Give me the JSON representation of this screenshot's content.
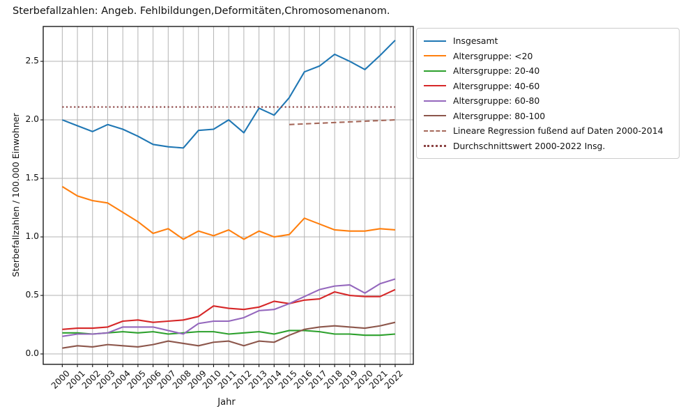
{
  "figure": {
    "title": "Sterbefallzahlen: Angeb. Fehlbildungen,Deformitäten,Chromosomenanom.",
    "xlabel": "Jahr",
    "ylabel": "Sterbefallzahlen / 100.000 Einwohner"
  },
  "legend": {
    "items": [
      {
        "label": "Insgesamt",
        "color": "#1f77b4",
        "style": "solid"
      },
      {
        "label": "Altersgruppe: <20",
        "color": "#ff7f0e",
        "style": "solid"
      },
      {
        "label": "Altersgruppe: 20-40",
        "color": "#2ca02c",
        "style": "solid"
      },
      {
        "label": "Altersgruppe: 40-60",
        "color": "#d62728",
        "style": "solid"
      },
      {
        "label": "Altersgruppe: 60-80",
        "color": "#9467bd",
        "style": "solid"
      },
      {
        "label": "Altersgruppe: 80-100",
        "color": "#8c564b",
        "style": "solid"
      },
      {
        "label": "Lineare Regression fußend auf Daten 2000-2014",
        "color": "#a5685a",
        "style": "dashed"
      },
      {
        "label": "Durchschnittswert 2000-2022 Insg.",
        "color": "#8b4343",
        "style": "dotted"
      }
    ]
  },
  "chart_data": {
    "type": "line",
    "title": "Sterbefallzahlen: Angeb. Fehlbildungen,Deformitäten,Chromosomenanom.",
    "xlabel": "Jahr",
    "ylabel": "Sterbefallzahlen / 100.000 Einwohner",
    "categories": [
      "2000",
      "2001",
      "2002",
      "2003",
      "2004",
      "2005",
      "2006",
      "2007",
      "2008",
      "2009",
      "2010",
      "2011",
      "2012",
      "2013",
      "2014",
      "2015",
      "2016",
      "2017",
      "2018",
      "2019",
      "2020",
      "2021",
      "2022"
    ],
    "yticks": [
      "0.0",
      "0.5",
      "1.0",
      "1.5",
      "2.0",
      "2.5"
    ],
    "xlim": [
      1998.74,
      2023.2
    ],
    "ylim": [
      -0.089,
      2.798
    ],
    "grid": true,
    "legend_position": "upper right",
    "extra_gridline_years": [
      2023
    ],
    "series": [
      {
        "name": "Insgesamt",
        "color": "#1f77b4",
        "style": "solid",
        "values": [
          2.0,
          1.95,
          1.9,
          1.96,
          1.92,
          1.86,
          1.79,
          1.77,
          1.76,
          1.91,
          1.92,
          2.0,
          1.89,
          2.1,
          2.04,
          2.19,
          2.41,
          2.46,
          2.56,
          2.5,
          2.43,
          2.55,
          2.68
        ]
      },
      {
        "name": "Altersgruppe: <20",
        "color": "#ff7f0e",
        "style": "solid",
        "values": [
          1.43,
          1.35,
          1.31,
          1.29,
          1.21,
          1.13,
          1.03,
          1.07,
          0.98,
          1.05,
          1.01,
          1.06,
          0.98,
          1.05,
          1.0,
          1.02,
          1.16,
          1.11,
          1.06,
          1.05,
          1.05,
          1.07,
          1.06
        ]
      },
      {
        "name": "Altersgruppe: 20-40",
        "color": "#2ca02c",
        "style": "solid",
        "values": [
          0.18,
          0.18,
          0.17,
          0.18,
          0.19,
          0.18,
          0.19,
          0.17,
          0.18,
          0.19,
          0.19,
          0.17,
          0.18,
          0.19,
          0.17,
          0.2,
          0.2,
          0.19,
          0.17,
          0.17,
          0.16,
          0.16,
          0.17
        ]
      },
      {
        "name": "Altersgruppe: 40-60",
        "color": "#d62728",
        "style": "solid",
        "values": [
          0.21,
          0.22,
          0.22,
          0.23,
          0.28,
          0.29,
          0.27,
          0.28,
          0.29,
          0.32,
          0.41,
          0.39,
          0.38,
          0.4,
          0.45,
          0.43,
          0.46,
          0.47,
          0.53,
          0.5,
          0.49,
          0.49,
          0.55
        ]
      },
      {
        "name": "Altersgruppe: 60-80",
        "color": "#9467bd",
        "style": "solid",
        "values": [
          0.15,
          0.17,
          0.17,
          0.18,
          0.23,
          0.23,
          0.23,
          0.2,
          0.17,
          0.26,
          0.28,
          0.28,
          0.31,
          0.37,
          0.38,
          0.43,
          0.49,
          0.55,
          0.58,
          0.59,
          0.52,
          0.6,
          0.64
        ]
      },
      {
        "name": "Altersgruppe: 80-100",
        "color": "#8c564b",
        "style": "solid",
        "values": [
          0.05,
          0.07,
          0.06,
          0.08,
          0.07,
          0.06,
          0.08,
          0.11,
          0.09,
          0.07,
          0.1,
          0.11,
          0.07,
          0.11,
          0.1,
          0.16,
          0.21,
          0.23,
          0.24,
          0.23,
          0.22,
          0.24,
          0.27
        ]
      },
      {
        "name": "Lineare Regression fußend auf Daten 2000-2014",
        "color": "#a5685a",
        "style": "dashed",
        "x": [
          2015,
          2022
        ],
        "values": [
          1.96,
          2.0
        ]
      },
      {
        "name": "Durchschnittswert 2000-2022 Insg.",
        "color": "#8b4343",
        "style": "dotted",
        "x": [
          2000,
          2022
        ],
        "values": [
          2.11,
          2.11
        ]
      }
    ]
  }
}
